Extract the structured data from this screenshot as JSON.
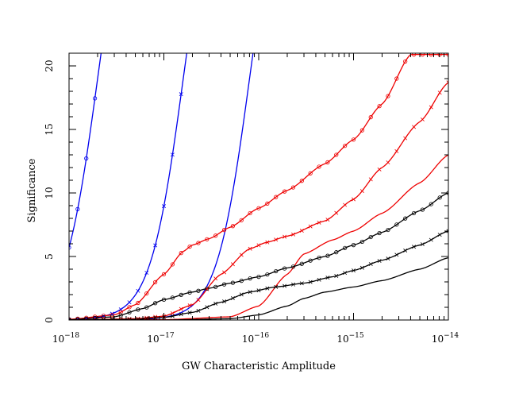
{
  "chart_data": {
    "type": "line",
    "title": "",
    "xlabel": "GW Characteristic Amplitude",
    "ylabel": "Significance",
    "xscale": "log",
    "xlim": [
      1e-18,
      1e-14
    ],
    "ylim": [
      0,
      21
    ],
    "grid": false,
    "xticks": [
      {
        "value": 1e-18,
        "base": "10",
        "exp": "−18"
      },
      {
        "value": 1e-17,
        "base": "10",
        "exp": "−17"
      },
      {
        "value": 1e-16,
        "base": "10",
        "exp": "−16"
      },
      {
        "value": 1e-15,
        "base": "10",
        "exp": "−15"
      },
      {
        "value": 1e-14,
        "base": "10",
        "exp": "−14"
      }
    ],
    "yticks": [
      0,
      5,
      10,
      15,
      20
    ],
    "series": [
      {
        "name": "blue-circles",
        "color": "#0000ee",
        "marker": "circle",
        "style": "sigmoid",
        "x0": 2e-18,
        "k": 2.5,
        "amp": 21.1
      },
      {
        "name": "blue-crosses",
        "color": "#0000ee",
        "marker": "cross",
        "style": "sigmoid",
        "x0": 1.6e-17,
        "k": 2.5,
        "amp": 21.1
      },
      {
        "name": "blue-plain",
        "color": "#0000ee",
        "marker": "none",
        "style": "sigmoid",
        "x0": 8e-17,
        "k": 2.5,
        "amp": 21.1
      },
      {
        "name": "red-circles",
        "color": "#ee0000",
        "marker": "circle",
        "x": [
          1e-18,
          3e-18,
          5e-18,
          1e-17,
          1.6e-17,
          2e-17,
          3e-17,
          5e-17,
          1e-16,
          2e-16,
          5e-16,
          1e-15,
          2e-15,
          4e-15
        ],
        "y": [
          0.05,
          0.4,
          1.2,
          3.6,
          5.4,
          5.9,
          6.4,
          7.3,
          8.8,
          10.2,
          12.3,
          14.2,
          17.0,
          20.9
        ]
      },
      {
        "name": "red-crosses",
        "color": "#ee0000",
        "marker": "cross",
        "x": [
          1e-18,
          5e-18,
          1e-17,
          2e-17,
          4e-17,
          8e-17,
          1.2e-16,
          2e-16,
          5e-16,
          1e-15,
          2e-15,
          5e-15,
          1e-14
        ],
        "y": [
          0.0,
          0.1,
          0.3,
          1.2,
          3.6,
          5.6,
          6.1,
          6.6,
          7.8,
          9.5,
          12.0,
          15.6,
          18.7
        ]
      },
      {
        "name": "red-plain",
        "color": "#ee0000",
        "marker": "none",
        "x": [
          1e-18,
          1e-17,
          5e-17,
          1e-16,
          2e-16,
          3e-16,
          6e-16,
          1e-15,
          2e-15,
          5e-15,
          1e-14
        ],
        "y": [
          0.0,
          0.02,
          0.25,
          1.1,
          3.6,
          5.2,
          6.3,
          7.0,
          8.4,
          10.8,
          13.0
        ]
      },
      {
        "name": "black-circles",
        "color": "#000000",
        "marker": "circle",
        "x": [
          1e-18,
          3e-18,
          6e-18,
          1e-17,
          2e-17,
          3e-17,
          5e-17,
          1e-16,
          2e-16,
          5e-16,
          1e-15,
          2e-15,
          5e-15,
          1e-14
        ],
        "y": [
          0.02,
          0.25,
          0.9,
          1.6,
          2.2,
          2.5,
          2.9,
          3.4,
          4.1,
          5.0,
          5.9,
          6.9,
          8.6,
          10.0
        ]
      },
      {
        "name": "black-crosses",
        "color": "#000000",
        "marker": "cross",
        "x": [
          1e-18,
          5e-18,
          1e-17,
          2e-17,
          4e-17,
          8e-17,
          1.5e-16,
          3e-16,
          6e-16,
          1e-15,
          2e-15,
          5e-15,
          1e-14
        ],
        "y": [
          0.0,
          0.05,
          0.2,
          0.6,
          1.4,
          2.2,
          2.6,
          2.9,
          3.4,
          3.9,
          4.7,
          5.9,
          7.0
        ]
      },
      {
        "name": "black-plain",
        "color": "#000000",
        "marker": "none",
        "x": [
          1e-18,
          1e-17,
          5e-17,
          1e-16,
          2e-16,
          3e-16,
          5e-16,
          1e-15,
          2e-15,
          5e-15,
          1e-14
        ],
        "y": [
          0.0,
          0.0,
          0.1,
          0.4,
          1.1,
          1.7,
          2.2,
          2.6,
          3.1,
          4.0,
          4.9
        ]
      }
    ]
  }
}
